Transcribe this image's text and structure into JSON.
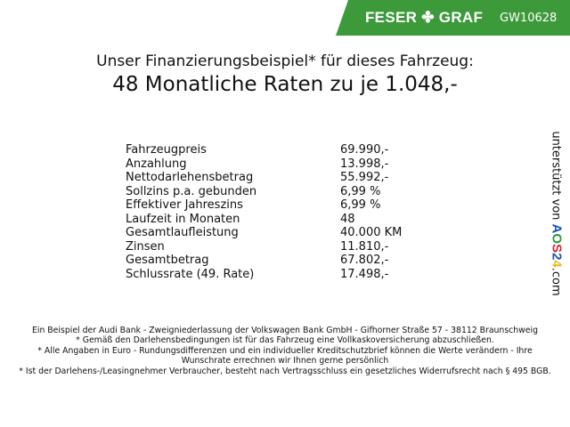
{
  "header": {
    "brand": "FESER",
    "brand2": "GRAF",
    "brand_icon": "clover-icon",
    "code": "GW10628",
    "color": "#3d9a3a"
  },
  "title": {
    "line1": "Unser Finanzierungsbeispiel* für dieses Fahrzeug:",
    "line2": "48 Monatliche Raten zu je 1.048,-"
  },
  "rows": [
    {
      "label": "Fahrzeugpreis",
      "value": "69.990,-"
    },
    {
      "label": "Anzahlung",
      "value": "13.998,-"
    },
    {
      "label": "Nettodarlehensbetrag",
      "value": "55.992,-"
    },
    {
      "label": "Sollzins p.a. gebunden",
      "value": "6,99 %"
    },
    {
      "label": "Effektiver Jahreszins",
      "value": "6,99 %"
    },
    {
      "label": "Laufzeit in Monaten",
      "value": "48"
    },
    {
      "label": "Gesamtlaufleistung",
      "value": "40.000 KM"
    },
    {
      "label": "Zinsen",
      "value": "11.810,-"
    },
    {
      "label": "Gesamtbetrag",
      "value": "67.802,-"
    },
    {
      "label": "Schlussrate (49. Rate)",
      "value": "17.498,-"
    }
  ],
  "side": {
    "prefix": "unterstützt von",
    "a": "A",
    "o": "O",
    "s": "S",
    "two": "2",
    "four": "4",
    "suffix": ".com"
  },
  "footer": [
    "Ein Beispiel der Audi Bank - Zweigniederlassung der Volkswagen Bank GmbH - Gifhorner Straße 57 - 38112 Braunschweig",
    "* Gemäß den Darlehensbedingungen ist für das Fahrzeug eine Vollkaskoversicherung abzuschließen.",
    "* Alle Angaben in Euro - Rundungsdifferenzen und ein individueller Kreditschutzbrief können die Werte verändern - Ihre Wunschrate errechnen wir Ihnen gerne persönlich",
    "* Ist der Darlehens-/Leasingnehmer Verbraucher, besteht nach Vertragsschluss ein gesetzliches Widerrufsrecht nach § 495 BGB."
  ]
}
